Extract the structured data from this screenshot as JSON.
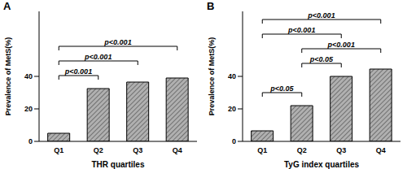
{
  "chart_data": [
    {
      "type": "bar",
      "title": "A",
      "categories": [
        "Q1",
        "Q2",
        "Q3",
        "Q4"
      ],
      "values": [
        5,
        32.5,
        36.5,
        39
      ],
      "color": "#b0b0b0",
      "x_label": "THR quartiles",
      "y_label": "Prevalence of MetS(%)",
      "ylim": [
        0,
        80
      ],
      "yticks": [
        0,
        20,
        40
      ],
      "annotations": [
        {
          "from": "Q1",
          "to": "Q2",
          "label": "p<0.001"
        },
        {
          "from": "Q1",
          "to": "Q3",
          "label": "p<0.001"
        },
        {
          "from": "Q1",
          "to": "Q4",
          "label": "p<0.001"
        }
      ]
    },
    {
      "type": "bar",
      "title": "B",
      "categories": [
        "Q1",
        "Q2",
        "Q3",
        "Q4"
      ],
      "values": [
        6.5,
        22,
        40,
        44.5
      ],
      "color": "#b0b0b0",
      "x_label": "TyG index quartiles",
      "y_label": "Prevalence of MetS(%)",
      "ylim": [
        0,
        80
      ],
      "yticks": [
        0,
        20,
        40
      ],
      "annotations": [
        {
          "from": "Q1",
          "to": "Q2",
          "label": "p<0.05"
        },
        {
          "from": "Q2",
          "to": "Q3",
          "label": "p<0.05"
        },
        {
          "from": "Q2",
          "to": "Q4",
          "label": "p<0.001"
        },
        {
          "from": "Q1",
          "to": "Q3",
          "label": "p<0.001"
        },
        {
          "from": "Q1",
          "to": "Q4",
          "label": "p<0.001"
        }
      ]
    }
  ]
}
